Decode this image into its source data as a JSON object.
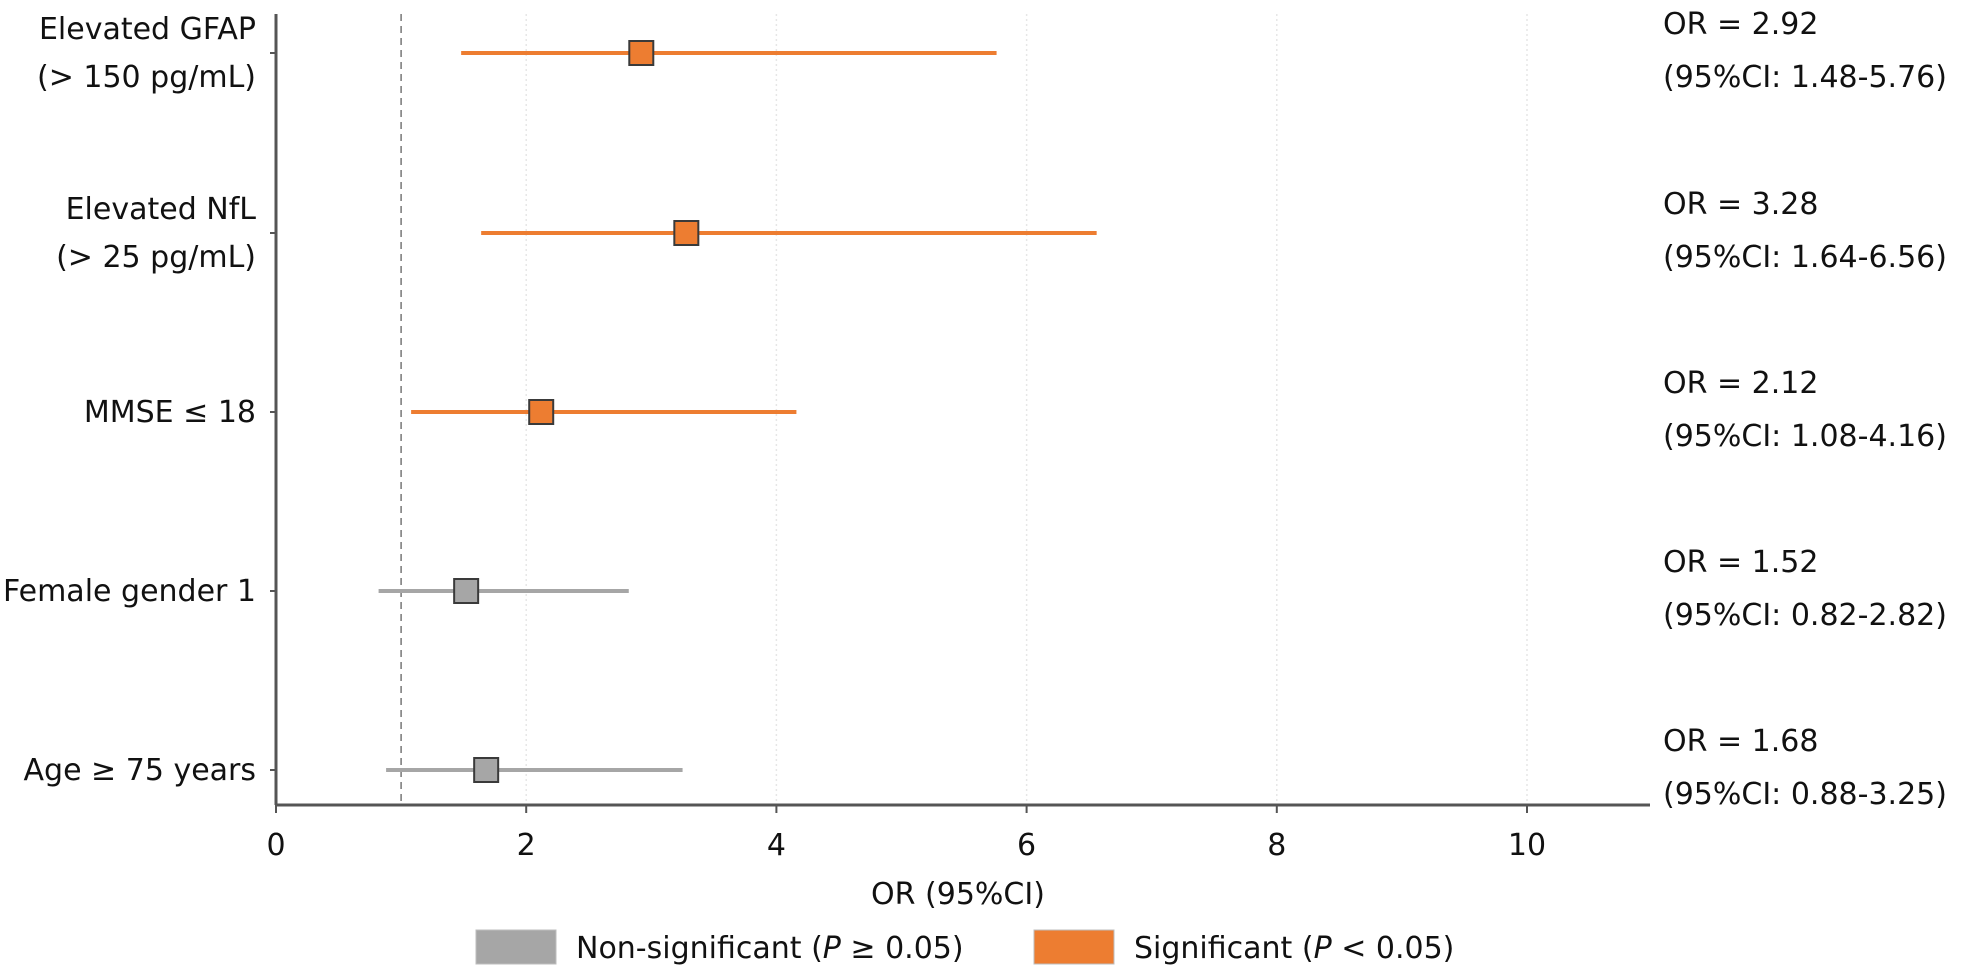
{
  "chart_data": {
    "type": "forest",
    "xlabel": "OR (95%CI)",
    "xlim": [
      0,
      11
    ],
    "xticks": [
      0,
      2,
      4,
      6,
      8,
      10
    ],
    "reference_line": 1,
    "grid": true,
    "colors": {
      "significant": "#ed7d31",
      "non_significant": "#a6a6a6",
      "reference": "#777777",
      "grid": "#e6e6e6"
    },
    "rows": [
      {
        "label_lines": [
          "Elevated GFAP",
          "(> 150 pg/mL)"
        ],
        "or": 2.92,
        "lower": 1.48,
        "upper": 5.76,
        "significant": true,
        "or_text": "OR = 2.92",
        "ci_text": "(95%CI: 1.48-5.76)"
      },
      {
        "label_lines": [
          "Elevated NfL",
          "(> 25 pg/mL)"
        ],
        "or": 3.28,
        "lower": 1.64,
        "upper": 6.56,
        "significant": true,
        "or_text": "OR = 3.28",
        "ci_text": "(95%CI: 1.64-6.56)"
      },
      {
        "label_lines": [
          "MMSE ≤ 18"
        ],
        "or": 2.12,
        "lower": 1.08,
        "upper": 4.16,
        "significant": true,
        "or_text": "OR = 2.12",
        "ci_text": "(95%CI: 1.08-4.16)"
      },
      {
        "label_lines": [
          "Female gender 1"
        ],
        "or": 1.52,
        "lower": 0.82,
        "upper": 2.82,
        "significant": false,
        "or_text": "OR = 1.52",
        "ci_text": "(95%CI: 0.82-2.82)"
      },
      {
        "label_lines": [
          "Age ≥ 75 years"
        ],
        "or": 1.68,
        "lower": 0.88,
        "upper": 3.25,
        "significant": false,
        "or_text": "OR = 1.68",
        "ci_text": "(95%CI: 0.88-3.25)"
      }
    ],
    "legend": [
      {
        "key": "non_significant",
        "pre": "Non-significant (",
        "italic": "P",
        "post": " ≥ 0.05)"
      },
      {
        "key": "significant",
        "pre": "Significant (",
        "italic": "P",
        "post": " < 0.05)"
      }
    ],
    "legend_position": "bottom-center"
  }
}
